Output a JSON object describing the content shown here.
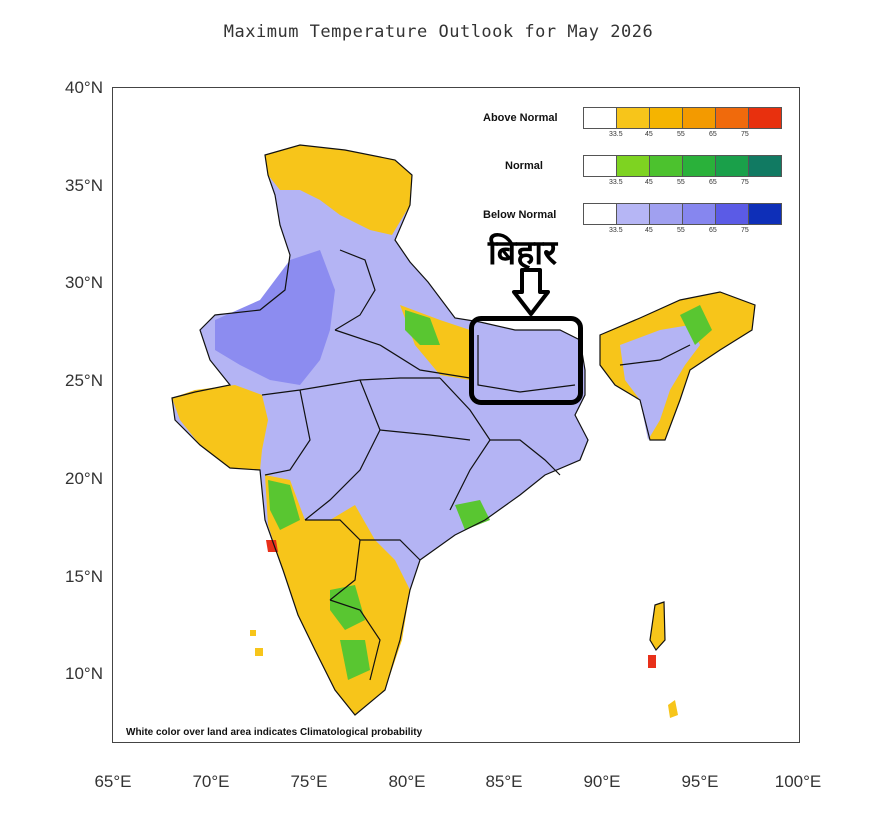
{
  "title": "Maximum Temperature Outlook for May 2026",
  "annotation": {
    "label": "बिहार"
  },
  "footnote": "White color over land area indicates Climatological probability",
  "axes": {
    "y_ticks": [
      "40°N",
      "35°N",
      "30°N",
      "25°N",
      "20°N",
      "15°N",
      "10°N"
    ],
    "x_ticks": [
      "65°E",
      "70°E",
      "75°E",
      "80°E",
      "85°E",
      "90°E",
      "95°E",
      "100°E"
    ]
  },
  "legend": [
    {
      "label": "Above Normal",
      "colors": [
        "#ffffff",
        "#f7c51a",
        "#f5b400",
        "#f39a00",
        "#f06a0c",
        "#e8300e"
      ],
      "ticks": [
        "33.5",
        "45",
        "55",
        "65",
        "75"
      ]
    },
    {
      "label": "Normal",
      "colors": [
        "#ffffff",
        "#7ed321",
        "#4cc22e",
        "#2ab13a",
        "#1aa04a",
        "#117a62"
      ],
      "ticks": [
        "33.5",
        "45",
        "55",
        "65",
        "75"
      ]
    },
    {
      "label": "Below Normal",
      "colors": [
        "#ffffff",
        "#b6b6f5",
        "#a0a0f0",
        "#8686ef",
        "#5b5be6",
        "#0e2fb8"
      ],
      "ticks": [
        "33.5",
        "45",
        "55",
        "65",
        "75"
      ]
    }
  ],
  "map_colors": {
    "above": "#f7c51a",
    "below": "#b4b4f4",
    "below_dark": "#8c8cf0",
    "normal": "#59c631",
    "red": "#e8301a"
  }
}
